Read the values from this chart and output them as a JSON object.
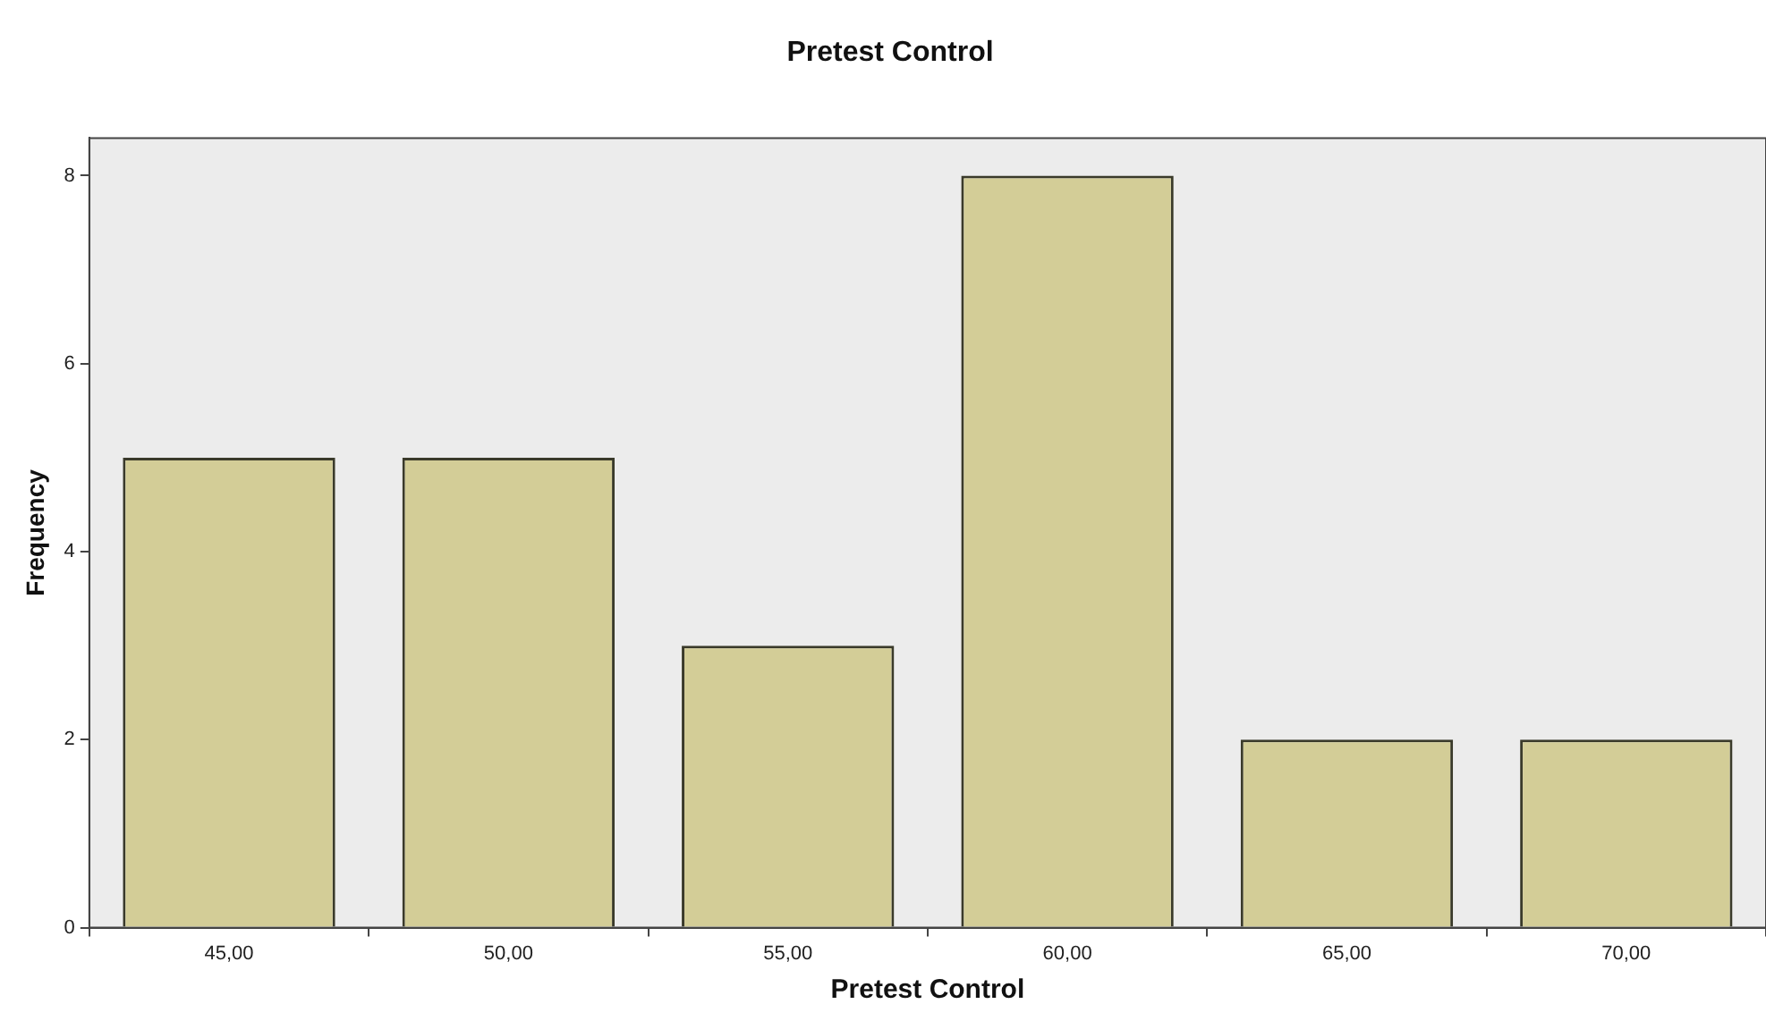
{
  "chart_data": {
    "type": "bar",
    "title": "Pretest Control",
    "xlabel": "Pretest Control",
    "ylabel": "Frequency",
    "categories": [
      "45,00",
      "50,00",
      "55,00",
      "60,00",
      "65,00",
      "70,00"
    ],
    "values": [
      5,
      5,
      3,
      8,
      2,
      2
    ],
    "color": "#d3cd97",
    "ylim": [
      0,
      8.4
    ],
    "yticks": [
      0,
      2,
      4,
      6,
      8
    ],
    "grid": false,
    "legend": false
  }
}
